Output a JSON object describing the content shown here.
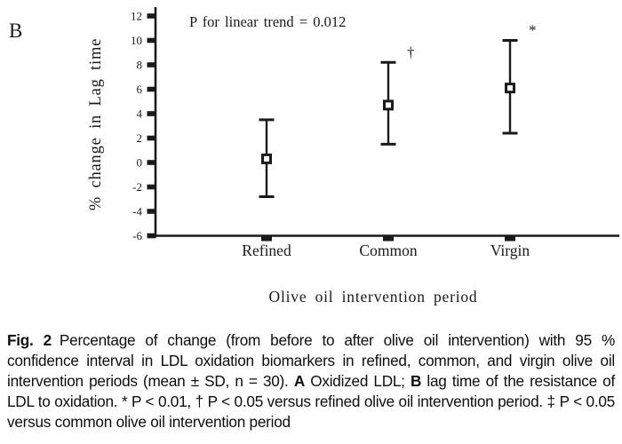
{
  "colors": {
    "ink": "#1a1a1a",
    "background": "#ffffff"
  },
  "panel_label": "B",
  "chart_data": {
    "type": "scatter",
    "subtype": "mean-with-95ci-error-bars",
    "categories": [
      "Refined",
      "Common",
      "Virgin"
    ],
    "series": [
      {
        "name": "% change in Lag time",
        "means": [
          0.3,
          4.7,
          6.1
        ],
        "ci_low": [
          -2.8,
          1.5,
          2.4
        ],
        "ci_high": [
          3.5,
          8.2,
          10.0
        ]
      }
    ],
    "point_annotations": [
      "",
      "†",
      "*"
    ],
    "annotation": "P for linear trend = 0.012",
    "title": "",
    "xlabel": "Olive oil intervention period",
    "ylabel": "% change in Lag time",
    "ylim": [
      -6,
      12
    ],
    "ytick_step": 2,
    "grid": false,
    "legend": "none"
  },
  "caption": {
    "segments": [
      {
        "text": "Fig. 2",
        "bold": true,
        "gap_after": true
      },
      {
        "text": "Percentage of change (from before to after olive oil intervention) with 95 % confidence interval in LDL oxidation biomarkers in refined, common, and virgin olive oil intervention periods (mean ± SD, n = 30). ",
        "bold": false
      },
      {
        "text": "A",
        "bold": true
      },
      {
        "text": " Oxidized LDL; ",
        "bold": false
      },
      {
        "text": "B",
        "bold": true
      },
      {
        "text": " lag time of the resistance of LDL to oxidation. * P < 0.01, † P < 0.05 versus refined olive oil intervention period. ‡ P < 0.05 versus common olive oil intervention period",
        "bold": false
      }
    ]
  }
}
